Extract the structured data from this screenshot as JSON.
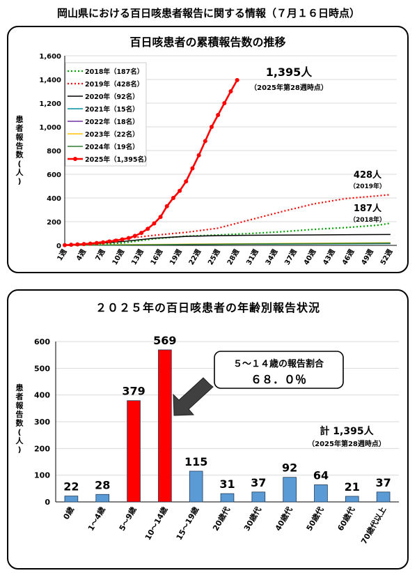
{
  "page_title": "岡山県における百日咳患者報告に関する情報（７月１６日時点）",
  "chart_data": [
    {
      "type": "line",
      "title": "百日咳患者の累積報告数の推移",
      "ylabel": "患者報告数(人)",
      "ylim": [
        0,
        1600
      ],
      "yticks": [
        0,
        200,
        400,
        600,
        800,
        1000,
        1200,
        1400,
        1600
      ],
      "x_range": [
        1,
        53
      ],
      "xticks": [
        "1週",
        "4週",
        "7週",
        "10週",
        "13週",
        "16週",
        "19週",
        "22週",
        "25週",
        "28週",
        "31週",
        "34週",
        "37週",
        "40週",
        "43週",
        "46週",
        "49週",
        "52週"
      ],
      "grid": true,
      "legend_placement": "top-left",
      "series": [
        {
          "name": "2018年（187名）",
          "color": "#00a000",
          "style": "dotted",
          "x": [
            1,
            5,
            10,
            15,
            20,
            25,
            30,
            35,
            40,
            45,
            50,
            52
          ],
          "values": [
            1,
            4,
            20,
            55,
            78,
            88,
            100,
            115,
            135,
            150,
            170,
            187
          ]
        },
        {
          "name": "2019年（428名）",
          "color": "#ff0000",
          "style": "dotted",
          "x": [
            1,
            5,
            10,
            15,
            20,
            25,
            30,
            35,
            40,
            45,
            50,
            52
          ],
          "values": [
            2,
            15,
            55,
            85,
            110,
            145,
            215,
            285,
            350,
            395,
            418,
            428
          ]
        },
        {
          "name": "2020年（92名）",
          "color": "#000000",
          "style": "solid",
          "x": [
            1,
            5,
            10,
            15,
            20,
            25,
            30,
            40,
            52
          ],
          "values": [
            2,
            12,
            32,
            60,
            76,
            82,
            85,
            88,
            92
          ]
        },
        {
          "name": "2021年（15名）",
          "color": "#0090a0",
          "style": "solid",
          "x": [
            1,
            10,
            20,
            30,
            40,
            52
          ],
          "values": [
            1,
            4,
            7,
            10,
            12,
            15
          ]
        },
        {
          "name": "2022年（18名）",
          "color": "#7030a0",
          "style": "solid",
          "x": [
            1,
            10,
            20,
            30,
            40,
            52
          ],
          "values": [
            1,
            5,
            8,
            12,
            15,
            18
          ]
        },
        {
          "name": "2023年（22名）",
          "color": "#ffc000",
          "style": "solid",
          "x": [
            1,
            10,
            20,
            30,
            40,
            52
          ],
          "values": [
            1,
            6,
            10,
            14,
            18,
            22
          ]
        },
        {
          "name": "2024年（19名）",
          "color": "#2e7d32",
          "style": "solid",
          "x": [
            1,
            10,
            20,
            30,
            40,
            52
          ],
          "values": [
            1,
            4,
            8,
            12,
            15,
            19
          ]
        },
        {
          "name": "2025年（1,395名）",
          "color": "#ff0000",
          "style": "solid-marker",
          "x": [
            1,
            2,
            3,
            4,
            5,
            6,
            7,
            8,
            9,
            10,
            11,
            12,
            13,
            14,
            15,
            16,
            17,
            18,
            19,
            20,
            21,
            22,
            23,
            24,
            25,
            26,
            27,
            28
          ],
          "values": [
            2,
            5,
            8,
            11,
            15,
            20,
            26,
            33,
            40,
            50,
            62,
            80,
            105,
            140,
            185,
            240,
            330,
            400,
            460,
            540,
            650,
            760,
            880,
            1000,
            1100,
            1200,
            1300,
            1395
          ]
        }
      ],
      "annotations": [
        {
          "text": "1,395人",
          "sub": "（2025年第28週時点）"
        },
        {
          "text": "428人",
          "sub": "（2019年）"
        },
        {
          "text": "187人",
          "sub": "（2018年）"
        }
      ]
    },
    {
      "type": "bar",
      "title": "２０２５年の百日咳患者の年齢別報告状況",
      "ylabel": "患者報告数(人)",
      "ylim": [
        0,
        600
      ],
      "yticks": [
        0,
        100,
        200,
        300,
        400,
        500,
        600
      ],
      "grid": true,
      "categories": [
        "0歳",
        "1～4歳",
        "5～9歳",
        "10～14歳",
        "15～19歳",
        "20歳代",
        "30歳代",
        "40歳代",
        "50歳代",
        "60歳代",
        "70歳代以上"
      ],
      "values": [
        22,
        28,
        379,
        569,
        115,
        31,
        37,
        92,
        64,
        21,
        37
      ],
      "highlighted_categories": [
        "5～9歳",
        "10～14歳"
      ],
      "bar_color": "#5b9bd5",
      "highlight_color": "#ff0000",
      "callout": {
        "line1": "５～１４歳の報告割合",
        "line2": "６８．０％"
      },
      "total": {
        "text": "計 1,395人",
        "sub": "（2025年第28週時点）"
      }
    }
  ]
}
